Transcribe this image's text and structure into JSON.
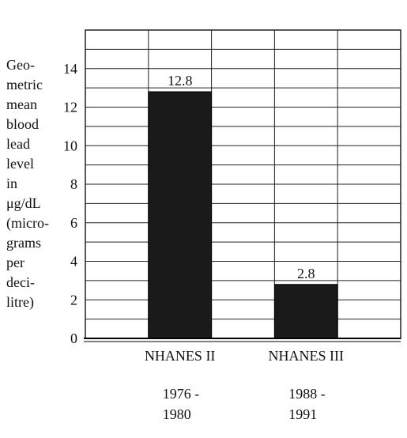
{
  "chart_data": {
    "type": "bar",
    "title": "",
    "ylabel_lines": [
      "Geo-",
      "metric",
      "mean",
      "blood",
      "lead",
      "level",
      "in",
      "μg/dL",
      "(micro-",
      "grams",
      "per",
      "deci-",
      "litre)"
    ],
    "xlabel": "",
    "categories": [
      "NHANES II",
      "NHANES III"
    ],
    "periods": [
      [
        "1976 -",
        "1980"
      ],
      [
        "1988 -",
        "1991"
      ]
    ],
    "values": [
      12.8,
      2.8
    ],
    "data_labels": [
      "12.8",
      "2.8"
    ],
    "ylim": [
      0,
      16
    ],
    "yticks": [
      0,
      2,
      4,
      6,
      8,
      10,
      12,
      14
    ],
    "grid": true,
    "bar_color": "#1a1a1a",
    "grid_color": "#222222"
  }
}
